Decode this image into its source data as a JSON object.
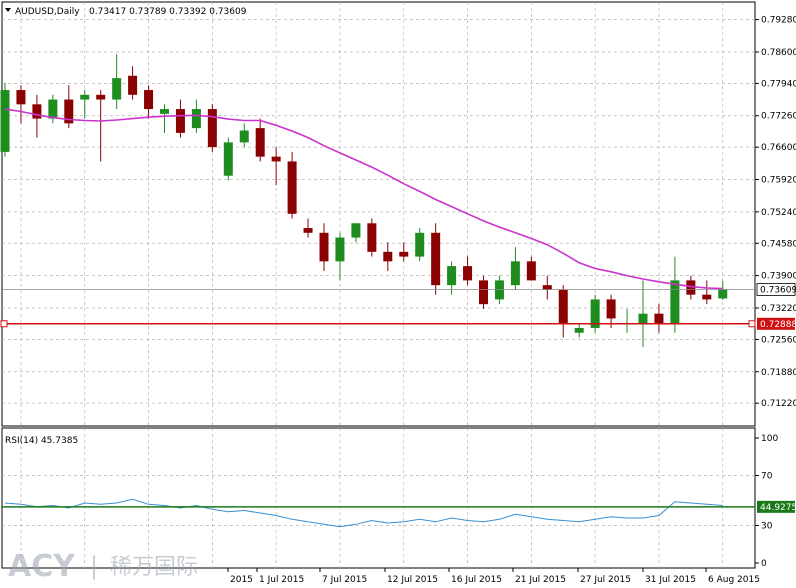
{
  "header": {
    "symbol": "AUDUSD,Daily",
    "ohlc": "0.73417 0.73789 0.73392 0.73609"
  },
  "price_axis": {
    "ticks": [
      "0.79280",
      "0.78600",
      "0.77940",
      "0.77260",
      "0.76600",
      "0.75920",
      "0.75240",
      "0.74580",
      "0.73900",
      "0.73220",
      "0.72560",
      "0.71880",
      "0.71220"
    ],
    "current_price": "0.73609",
    "level_price": "0.72888"
  },
  "rsi": {
    "label": "RSI(14) 45.7385",
    "level_value": "44.9275",
    "ticks": [
      "100",
      "70",
      "30",
      "0"
    ]
  },
  "date_axis": {
    "labels": [
      "2015",
      "1 Jul 2015",
      "7 Jul 2015",
      "12 Jul 2015",
      "16 Jul 2015",
      "21 Jul 2015",
      "27 Jul 2015",
      "31 Jul 2015",
      "6 Aug 2015"
    ]
  },
  "logo": {
    "brand": "ACY",
    "divider": "|",
    "chinese": "稀万国际"
  },
  "colors": {
    "bull": "#1e8c1e",
    "bear": "#8b0000",
    "ma": "#cc33cc",
    "level": "#d01010",
    "rsi_line": "#3a8fd0",
    "rsi_level": "#1a7a1a",
    "grid": "#b4b4b4"
  },
  "chart_data": {
    "type": "candlestick",
    "series": [
      {
        "name": "AUDUSD,Daily",
        "ohlc": [
          [
            0.765,
            0.7795,
            0.764,
            0.778
          ],
          [
            0.778,
            0.779,
            0.771,
            0.775
          ],
          [
            0.775,
            0.777,
            0.768,
            0.772
          ],
          [
            0.772,
            0.777,
            0.771,
            0.776
          ],
          [
            0.776,
            0.779,
            0.77,
            0.771
          ],
          [
            0.776,
            0.778,
            0.772,
            0.777
          ],
          [
            0.777,
            0.778,
            0.763,
            0.776
          ],
          [
            0.776,
            0.7855,
            0.774,
            0.7805
          ],
          [
            0.781,
            0.783,
            0.776,
            0.777
          ],
          [
            0.778,
            0.779,
            0.772,
            0.774
          ],
          [
            0.773,
            0.775,
            0.769,
            0.774
          ],
          [
            0.774,
            0.776,
            0.768,
            0.769
          ],
          [
            0.77,
            0.776,
            0.769,
            0.774
          ],
          [
            0.774,
            0.775,
            0.765,
            0.766
          ],
          [
            0.76,
            0.768,
            0.759,
            0.767
          ],
          [
            0.767,
            0.771,
            0.766,
            0.7695
          ],
          [
            0.77,
            0.772,
            0.763,
            0.764
          ],
          [
            0.764,
            0.766,
            0.758,
            0.763
          ],
          [
            0.763,
            0.765,
            0.751,
            0.752
          ],
          [
            0.749,
            0.751,
            0.747,
            0.748
          ],
          [
            0.748,
            0.75,
            0.74,
            0.742
          ],
          [
            0.742,
            0.748,
            0.738,
            0.747
          ],
          [
            0.747,
            0.75,
            0.746,
            0.75
          ],
          [
            0.75,
            0.751,
            0.743,
            0.744
          ],
          [
            0.744,
            0.746,
            0.74,
            0.742
          ],
          [
            0.744,
            0.746,
            0.742,
            0.743
          ],
          [
            0.743,
            0.749,
            0.742,
            0.748
          ],
          [
            0.748,
            0.75,
            0.735,
            0.737
          ],
          [
            0.737,
            0.742,
            0.735,
            0.741
          ],
          [
            0.741,
            0.743,
            0.737,
            0.738
          ],
          [
            0.738,
            0.739,
            0.732,
            0.733
          ],
          [
            0.734,
            0.739,
            0.733,
            0.738
          ],
          [
            0.737,
            0.745,
            0.736,
            0.742
          ],
          [
            0.742,
            0.743,
            0.738,
            0.738
          ],
          [
            0.737,
            0.739,
            0.734,
            0.736
          ],
          [
            0.736,
            0.737,
            0.726,
            0.729
          ],
          [
            0.727,
            0.729,
            0.726,
            0.728
          ],
          [
            0.728,
            0.735,
            0.727,
            0.734
          ],
          [
            0.734,
            0.735,
            0.728,
            0.73
          ],
          [
            0.729,
            0.732,
            0.727,
            0.729
          ],
          [
            0.729,
            0.738,
            0.724,
            0.731
          ],
          [
            0.731,
            0.733,
            0.727,
            0.729
          ],
          [
            0.729,
            0.743,
            0.727,
            0.738
          ],
          [
            0.738,
            0.739,
            0.734,
            0.735
          ],
          [
            0.735,
            0.738,
            0.733,
            0.734
          ],
          [
            0.7342,
            0.7379,
            0.7339,
            0.7361
          ]
        ]
      },
      {
        "name": "",
        "values": [
          0.774,
          0.7735,
          0.7728,
          0.7722,
          0.7718,
          0.7716,
          0.7715,
          0.7717,
          0.772,
          0.7723,
          0.7725,
          0.7726,
          0.7727,
          0.7724,
          0.7719,
          0.7716,
          0.7716,
          0.7706,
          0.7694,
          0.768,
          0.7663,
          0.7648,
          0.7633,
          0.7618,
          0.7601,
          0.7583,
          0.7567,
          0.755,
          0.7535,
          0.752,
          0.7505,
          0.7492,
          0.748,
          0.7468,
          0.7455,
          0.7437,
          0.7417,
          0.7405,
          0.7398,
          0.739,
          0.7383,
          0.7377,
          0.7372,
          0.7367,
          0.7364,
          0.7363
        ]
      },
      {
        "name": "",
        "values": [
          48,
          47,
          45,
          46,
          44,
          48,
          47,
          48,
          51,
          47,
          46,
          44,
          46,
          43,
          41,
          42,
          40,
          38,
          35,
          33,
          31,
          29,
          31,
          34,
          32,
          33,
          35,
          33,
          36,
          34,
          33,
          35,
          39,
          37,
          35,
          34,
          33,
          35,
          37,
          36,
          36,
          38,
          49,
          48,
          47,
          46
        ]
      }
    ],
    "ylim": [
      0.7074,
      0.7965
    ],
    "rsi_ylim": [
      0,
      100
    ]
  }
}
